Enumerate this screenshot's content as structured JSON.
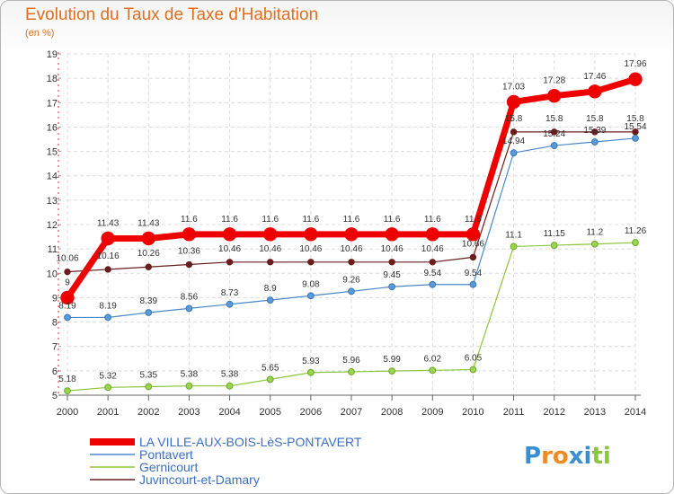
{
  "header": {
    "title": "Evolution du Taux de Taxe d'Habitation",
    "subtitle": "(en %)"
  },
  "brand": {
    "letters": [
      "P",
      "r",
      "o",
      "x",
      "i",
      "t",
      "i"
    ],
    "colors": [
      "#3a8fd0",
      "#f08a24",
      "#f08a24",
      "#3a8fd0",
      "#3a8fd0",
      "#8cc63f",
      "#8cc63f"
    ]
  },
  "chart_data": {
    "type": "line",
    "title": "Evolution du Taux de Taxe d'Habitation",
    "ylabel": "(en %)",
    "xlabel": "",
    "ylim": [
      5,
      19
    ],
    "yticks": [
      5,
      6,
      7,
      8,
      9,
      10,
      11,
      12,
      13,
      14,
      15,
      16,
      17,
      18,
      19
    ],
    "grid": true,
    "legend_position": "bottom-left",
    "categories": [
      "2000",
      "2001",
      "2002",
      "2003",
      "2004",
      "2005",
      "2006",
      "2007",
      "2008",
      "2009",
      "2010",
      "2011",
      "2012",
      "2013",
      "2014"
    ],
    "series": [
      {
        "name": "Juvincourt-et-Damary",
        "color": "#6b1d1d",
        "values": [
          10.06,
          10.16,
          10.26,
          10.36,
          10.46,
          10.46,
          10.46,
          10.46,
          10.46,
          10.46,
          10.66,
          15.8,
          15.8,
          15.8,
          15.8
        ],
        "labels": [
          "10.06",
          "10.16",
          "10.26",
          "10.36",
          "10.46",
          "10.46",
          "10.46",
          "10.46",
          "10.46",
          "10.46",
          "10.66",
          "15.8",
          "15.8",
          "15.8",
          "15.8"
        ]
      },
      {
        "name": "Gernicourt",
        "color": "#8cc63f",
        "values": [
          5.18,
          5.32,
          5.35,
          5.38,
          5.38,
          5.65,
          5.93,
          5.96,
          5.99,
          6.02,
          6.05,
          11.1,
          11.15,
          11.2,
          11.26
        ],
        "labels": [
          "5.18",
          "5.32",
          "5.35",
          "5.38",
          "5.38",
          "5.65",
          "5.93",
          "5.96",
          "5.99",
          "6.02",
          "6.05",
          "11.1",
          "11.15",
          "11.2",
          "11.26"
        ]
      },
      {
        "name": "Pontavert",
        "color": "#4a8ac8",
        "values": [
          8.19,
          8.19,
          8.39,
          8.56,
          8.73,
          8.9,
          9.08,
          9.26,
          9.45,
          9.54,
          9.54,
          14.94,
          15.24,
          15.39,
          15.54
        ],
        "labels": [
          "8.19",
          "8.19",
          "8.39",
          "8.56",
          "8.73",
          "8.9",
          "9.08",
          "9.26",
          "9.45",
          "9.54",
          "9.54",
          "14.94",
          "15.24",
          "15.39",
          "15.54"
        ]
      },
      {
        "name": "LA VILLE-AUX-BOIS-LèS-PONTAVERT",
        "color": "#ee0000",
        "values": [
          9.0,
          11.43,
          11.43,
          11.6,
          11.6,
          11.6,
          11.6,
          11.6,
          11.6,
          11.6,
          11.6,
          17.03,
          17.28,
          17.46,
          17.96
        ],
        "labels": [
          "9",
          "11.43",
          "11.43",
          "11.6",
          "11.6",
          "11.6",
          "11.6",
          "11.6",
          "11.6",
          "11.6",
          "11.6",
          "17.03",
          "17.28",
          "17.46",
          "17.96"
        ]
      }
    ],
    "legend_order": [
      "LA VILLE-AUX-BOIS-LèS-PONTAVERT",
      "Pontavert",
      "Gernicourt",
      "Juvincourt-et-Damary"
    ]
  }
}
